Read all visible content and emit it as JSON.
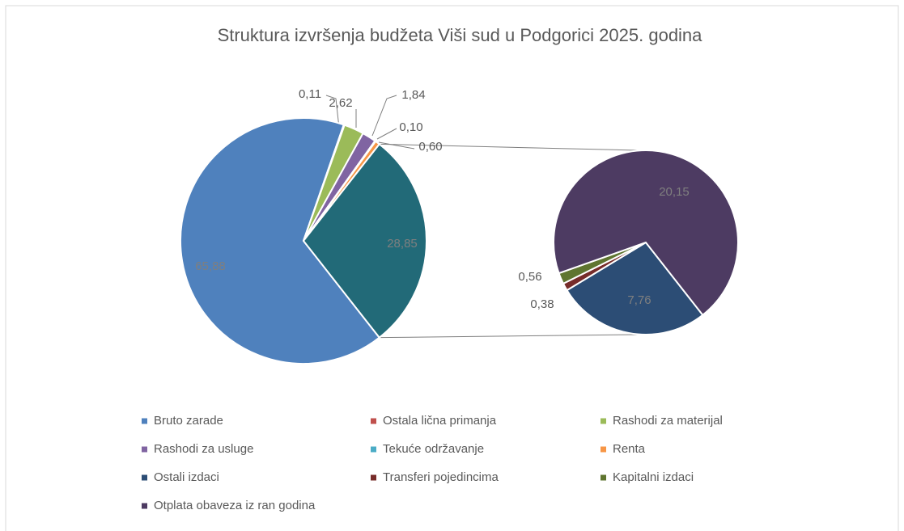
{
  "chart_data": {
    "type": "pie-of-pie",
    "title": "Struktura izvršenja budžeta Viši sud u Podgorici  2025. godina",
    "categories": [
      "Bruto zarade",
      "Ostala lična primanja",
      "Rashodi za materijal",
      "Rashodi za  usluge",
      "Tekuće održavanje",
      "Renta",
      "Ostali izdaci",
      "Transferi pojedincima",
      "Kapitalni izdaci",
      "Otplata obaveza iz ran godina"
    ],
    "values": [
      65.88,
      0.11,
      2.62,
      1.84,
      0.1,
      0.6,
      7.76,
      0.38,
      0.56,
      20.15
    ],
    "value_labels": [
      "65,88",
      "0,11",
      "2,62",
      "1,84",
      "0,10",
      "0,60",
      "7,76",
      "0,38",
      "0,56",
      "20,15"
    ],
    "colors": [
      "#4f81bd",
      "#c0504d",
      "#9bbb59",
      "#8064a2",
      "#4bacc6",
      "#f79646",
      "#2c4d75",
      "#772c2a",
      "#5f7530",
      "#4d3b62"
    ],
    "second_pie_from": 6,
    "other_value": 28.85,
    "other_label": "28,85",
    "other_color": "#226a78",
    "legend": "bottom"
  }
}
